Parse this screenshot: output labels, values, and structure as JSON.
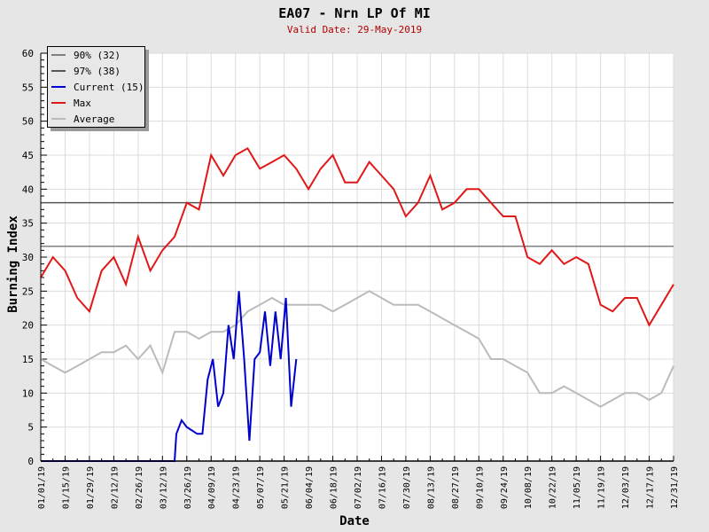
{
  "chart_data": {
    "type": "line",
    "title": "EA07 - Nrn LP Of MI",
    "subtitle": "Valid Date: 29-May-2019",
    "xlabel": "Date",
    "ylabel": "Burning Index",
    "ylim": [
      0,
      60
    ],
    "yticks": [
      "0",
      "5",
      "10",
      "15",
      "20",
      "25",
      "30",
      "35",
      "40",
      "45",
      "50",
      "55",
      "60"
    ],
    "xlim_days": [
      0,
      364
    ],
    "xticks": [
      "01/01/19",
      "01/15/19",
      "01/29/19",
      "02/12/19",
      "02/26/19",
      "03/12/19",
      "03/26/19",
      "04/09/19",
      "04/23/19",
      "05/07/19",
      "05/21/19",
      "06/04/19",
      "06/18/19",
      "07/02/19",
      "07/16/19",
      "07/30/19",
      "08/13/19",
      "08/27/19",
      "09/10/19",
      "09/24/19",
      "10/08/19",
      "10/22/19",
      "11/05/19",
      "11/19/19",
      "12/03/19",
      "12/17/19",
      "12/31/19"
    ],
    "grid": true,
    "legend_placement": "top-left",
    "thresholds": [
      {
        "name": "90% (32)",
        "value": 31.6,
        "color": "#808080"
      },
      {
        "name": "97% (38)",
        "value": 38,
        "color": "#555555"
      }
    ],
    "series": [
      {
        "name": "Current (15)",
        "color": "#0000cc",
        "x": [
          0,
          77,
          78,
          81,
          84,
          87,
          90,
          93,
          96,
          99,
          102,
          105,
          108,
          111,
          114,
          117,
          120,
          123,
          126,
          129,
          132,
          135,
          138,
          141,
          144,
          147
        ],
        "values": [
          0,
          0,
          4,
          6,
          5,
          4.5,
          4,
          4,
          12,
          15,
          8,
          10,
          20,
          15,
          25,
          15,
          3,
          15,
          16,
          22,
          14,
          22,
          15,
          24,
          8,
          15
        ]
      },
      {
        "name": "Max",
        "color": "#e01818",
        "x": [
          0,
          7,
          14,
          21,
          28,
          35,
          42,
          49,
          56,
          63,
          70,
          77,
          84,
          91,
          98,
          105,
          112,
          119,
          126,
          133,
          140,
          147,
          154,
          161,
          168,
          175,
          182,
          189,
          196,
          203,
          210,
          217,
          224,
          231,
          238,
          245,
          252,
          259,
          266,
          273,
          280,
          287,
          294,
          301,
          308,
          315,
          322,
          329,
          336,
          343,
          350,
          357,
          364
        ],
        "values": [
          27,
          30,
          28,
          24,
          22,
          28,
          30,
          26,
          33,
          28,
          31,
          33,
          38,
          37,
          45,
          42,
          45,
          46,
          43,
          44,
          45,
          43,
          40,
          43,
          45,
          41,
          41,
          44,
          42,
          40,
          36,
          38,
          42,
          37,
          38,
          40,
          40,
          38,
          36,
          36,
          30,
          29,
          31,
          29,
          30,
          29,
          23,
          22,
          24,
          24,
          20,
          23,
          26
        ]
      },
      {
        "name": "Average",
        "color": "#bbbbbb",
        "x": [
          0,
          7,
          14,
          21,
          28,
          35,
          42,
          49,
          56,
          63,
          70,
          77,
          84,
          91,
          98,
          105,
          112,
          119,
          126,
          133,
          140,
          147,
          154,
          161,
          168,
          175,
          182,
          189,
          196,
          203,
          210,
          217,
          224,
          231,
          238,
          245,
          252,
          259,
          266,
          273,
          280,
          287,
          294,
          301,
          308,
          315,
          322,
          329,
          336,
          343,
          350,
          357,
          364
        ],
        "values": [
          15,
          14,
          13,
          14,
          15,
          16,
          16,
          17,
          15,
          17,
          13,
          19,
          19,
          18,
          19,
          19,
          20,
          22,
          23,
          24,
          23,
          23,
          23,
          23,
          22,
          23,
          24,
          25,
          24,
          23,
          23,
          23,
          22,
          21,
          20,
          19,
          18,
          15,
          15,
          14,
          13,
          10,
          10,
          11,
          10,
          9,
          8,
          9,
          10,
          10,
          9,
          10,
          14
        ]
      }
    ],
    "legend": [
      "90% (32)",
      "97% (38)",
      "Current (15)",
      "Max",
      "Average"
    ]
  }
}
